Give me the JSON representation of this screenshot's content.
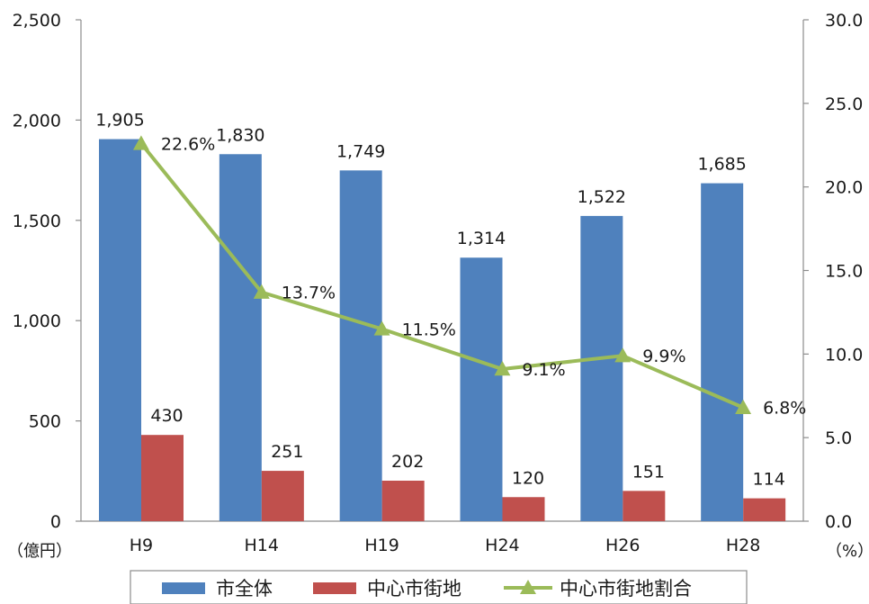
{
  "chart_data": {
    "type": "bar",
    "categories": [
      "H9",
      "H14",
      "H19",
      "H24",
      "H26",
      "H28"
    ],
    "series": [
      {
        "name": "市全体",
        "kind": "bar",
        "axis": "left",
        "values": [
          1905,
          1830,
          1749,
          1314,
          1522,
          1685
        ],
        "labels": [
          "1,905",
          "1,830",
          "1,749",
          "1,314",
          "1,522",
          "1,685"
        ]
      },
      {
        "name": "中心市街地",
        "kind": "bar",
        "axis": "left",
        "values": [
          430,
          251,
          202,
          120,
          151,
          114
        ],
        "labels": [
          "430",
          "251",
          "202",
          "120",
          "151",
          "114"
        ]
      },
      {
        "name": "中心市街地割合",
        "kind": "line",
        "axis": "right",
        "values": [
          22.6,
          13.7,
          11.5,
          9.1,
          9.9,
          6.8
        ],
        "labels": [
          "22.6%",
          "13.7%",
          "11.5%",
          "9.1%",
          "9.9%",
          "6.8%"
        ]
      }
    ],
    "left_axis": {
      "unit": "（億円）",
      "range": [
        0,
        2500
      ],
      "ticks": [
        "0",
        "500",
        "1,000",
        "1,500",
        "2,000",
        "2,500"
      ]
    },
    "right_axis": {
      "unit": "（%）",
      "range": [
        0,
        30
      ],
      "ticks": [
        "0.0",
        "5.0",
        "10.0",
        "15.0",
        "20.0",
        "25.0",
        "30.0"
      ]
    },
    "grid": false,
    "legend_position": "bottom",
    "colors": {
      "bar1": "#4f81bd",
      "bar2": "#c0504d",
      "line": "#9bbb59"
    }
  }
}
